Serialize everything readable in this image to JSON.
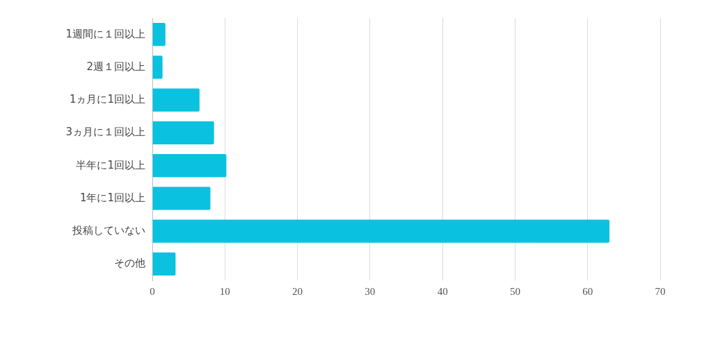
{
  "chart_data": {
    "type": "bar",
    "orientation": "horizontal",
    "categories": [
      "1週間に１回以上",
      "2週１回以上",
      "1ヵ月に1回以上",
      "3ヵ月に１回以上",
      "半年に1回以上",
      "1年に1回以上",
      "投稿していない",
      "その他"
    ],
    "values": [
      1.8,
      1.4,
      6.5,
      8.5,
      10.2,
      8.0,
      63,
      3.2
    ],
    "color": "#0bc1e0",
    "xlim": [
      0,
      70
    ],
    "xticks": [
      0,
      10,
      20,
      30,
      40,
      50,
      60,
      70
    ],
    "grid": "x",
    "legend": false
  }
}
